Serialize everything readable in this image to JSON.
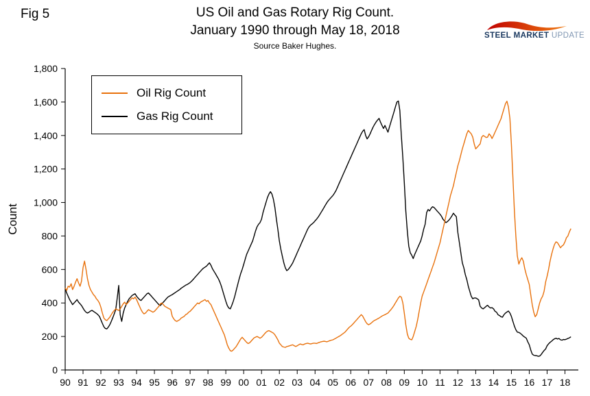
{
  "fig_label": "Fig 5",
  "title": {
    "line1": "US Oil and Gas Rotary Rig Count.",
    "line2": "January 1990 through May 18, 2018",
    "source": "Source Baker Hughes."
  },
  "logo": {
    "steel": "STEEL",
    "market": "MARKET",
    "update": "UPDATE",
    "swoosh_color_start": "#C00000",
    "swoosh_color_end": "#F07B10"
  },
  "chart_data": {
    "type": "line",
    "title": "US Oil and Gas Rotary Rig Count.",
    "subtitle": "January 1990 through May 18, 2018",
    "source": "Source Baker Hughes.",
    "xlabel": "",
    "ylabel": "Count",
    "ylim": [
      0,
      1800
    ],
    "ytick_step": 200,
    "grid": false,
    "x_frequency": "monthly",
    "x_start": "1990-01",
    "x_end": "2018-05",
    "x_tick_labels": [
      "90",
      "91",
      "92",
      "93",
      "94",
      "95",
      "96",
      "97",
      "98",
      "99",
      "00",
      "01",
      "02",
      "03",
      "04",
      "05",
      "06",
      "07",
      "08",
      "09",
      "10",
      "11",
      "12",
      "13",
      "14",
      "15",
      "16",
      "17",
      "18"
    ],
    "legend": {
      "position": "top-left",
      "entries": [
        "Oil Rig Count",
        "Gas Rig Count"
      ]
    },
    "series": [
      {
        "name": "Oil Rig Count",
        "color": "#E8700A",
        "values": [
          490,
          475,
          500,
          495,
          515,
          480,
          500,
          525,
          545,
          520,
          500,
          530,
          610,
          650,
          600,
          545,
          505,
          480,
          465,
          450,
          440,
          425,
          415,
          400,
          375,
          340,
          310,
          300,
          295,
          305,
          315,
          330,
          345,
          355,
          365,
          360,
          355,
          365,
          380,
          395,
          405,
          390,
          400,
          410,
          420,
          430,
          425,
          435,
          420,
          400,
          380,
          360,
          345,
          335,
          340,
          350,
          360,
          355,
          350,
          345,
          350,
          360,
          370,
          380,
          395,
          400,
          390,
          380,
          375,
          370,
          365,
          360,
          320,
          305,
          295,
          290,
          295,
          300,
          310,
          315,
          320,
          330,
          335,
          345,
          350,
          360,
          370,
          380,
          390,
          400,
          395,
          405,
          410,
          415,
          420,
          410,
          415,
          400,
          390,
          370,
          350,
          330,
          310,
          290,
          270,
          250,
          230,
          210,
          180,
          150,
          130,
          115,
          112,
          120,
          130,
          140,
          155,
          170,
          185,
          195,
          185,
          175,
          165,
          158,
          162,
          172,
          182,
          192,
          196,
          200,
          195,
          190,
          195,
          205,
          215,
          225,
          232,
          235,
          230,
          225,
          220,
          210,
          195,
          180,
          160,
          150,
          140,
          137,
          135,
          140,
          142,
          145,
          148,
          150,
          145,
          140,
          145,
          150,
          155,
          152,
          150,
          155,
          158,
          160,
          157,
          155,
          158,
          160,
          160,
          158,
          162,
          165,
          168,
          170,
          172,
          170,
          168,
          172,
          175,
          178,
          180,
          185,
          190,
          195,
          200,
          205,
          212,
          218,
          225,
          235,
          245,
          255,
          262,
          270,
          280,
          290,
          300,
          310,
          320,
          330,
          322,
          305,
          288,
          276,
          270,
          275,
          282,
          290,
          296,
          300,
          305,
          310,
          316,
          322,
          326,
          330,
          335,
          340,
          350,
          360,
          372,
          385,
          400,
          415,
          430,
          440,
          435,
          400,
          340,
          270,
          215,
          190,
          183,
          180,
          200,
          230,
          260,
          300,
          350,
          400,
          440,
          465,
          490,
          515,
          540,
          565,
          590,
          615,
          640,
          670,
          700,
          730,
          760,
          800,
          840,
          880,
          920,
          960,
          1000,
          1040,
          1070,
          1100,
          1140,
          1180,
          1220,
          1250,
          1285,
          1320,
          1350,
          1380,
          1410,
          1430,
          1420,
          1410,
          1390,
          1350,
          1320,
          1330,
          1340,
          1350,
          1390,
          1400,
          1395,
          1388,
          1390,
          1410,
          1400,
          1382,
          1400,
          1420,
          1440,
          1460,
          1480,
          1500,
          1530,
          1560,
          1590,
          1605,
          1570,
          1500,
          1350,
          1150,
          950,
          800,
          680,
          632,
          655,
          670,
          650,
          605,
          570,
          540,
          510,
          450,
          390,
          345,
          318,
          330,
          365,
          400,
          425,
          441,
          470,
          525,
          560,
          600,
          650,
          690,
          722,
          750,
          765,
          760,
          745,
          730,
          740,
          747,
          765,
          790,
          800,
          825,
          844
        ]
      },
      {
        "name": "Gas Rig Count",
        "color": "#000000",
        "values": [
          485,
          460,
          440,
          420,
          405,
          390,
          400,
          410,
          420,
          405,
          395,
          385,
          370,
          355,
          345,
          340,
          345,
          352,
          356,
          350,
          344,
          338,
          330,
          320,
          300,
          278,
          258,
          248,
          245,
          256,
          270,
          290,
          312,
          335,
          360,
          430,
          505,
          330,
          290,
          340,
          370,
          390,
          410,
          425,
          435,
          445,
          450,
          455,
          440,
          430,
          420,
          415,
          425,
          435,
          445,
          455,
          460,
          450,
          440,
          430,
          420,
          410,
          400,
          390,
          385,
          395,
          405,
          415,
          425,
          435,
          440,
          445,
          450,
          456,
          462,
          468,
          474,
          480,
          488,
          494,
          500,
          506,
          510,
          516,
          522,
          530,
          540,
          550,
          560,
          570,
          580,
          590,
          600,
          608,
          614,
          620,
          630,
          640,
          625,
          605,
          590,
          575,
          560,
          545,
          525,
          500,
          470,
          440,
          410,
          385,
          370,
          365,
          385,
          410,
          440,
          475,
          510,
          545,
          575,
          600,
          630,
          660,
          690,
          710,
          730,
          750,
          770,
          800,
          830,
          855,
          870,
          880,
          900,
          940,
          970,
          1000,
          1030,
          1050,
          1065,
          1050,
          1020,
          970,
          900,
          840,
          770,
          720,
          680,
          640,
          610,
          593,
          600,
          612,
          625,
          640,
          660,
          680,
          700,
          720,
          740,
          760,
          780,
          800,
          820,
          840,
          855,
          865,
          872,
          880,
          890,
          900,
          912,
          925,
          940,
          955,
          970,
          985,
          1000,
          1012,
          1022,
          1032,
          1042,
          1055,
          1070,
          1090,
          1110,
          1130,
          1150,
          1170,
          1190,
          1210,
          1230,
          1250,
          1270,
          1290,
          1310,
          1330,
          1350,
          1370,
          1390,
          1410,
          1425,
          1435,
          1400,
          1380,
          1392,
          1410,
          1430,
          1450,
          1466,
          1480,
          1492,
          1502,
          1480,
          1460,
          1442,
          1460,
          1440,
          1420,
          1450,
          1480,
          1510,
          1540,
          1570,
          1600,
          1606,
          1550,
          1400,
          1267,
          1120,
          950,
          830,
          740,
          700,
          685,
          665,
          690,
          710,
          730,
          750,
          770,
          800,
          840,
          870,
          940,
          958,
          950,
          965,
          975,
          970,
          960,
          950,
          940,
          930,
          918,
          900,
          890,
          880,
          886,
          895,
          906,
          920,
          936,
          925,
          915,
          820,
          760,
          700,
          640,
          610,
          570,
          540,
          500,
          470,
          440,
          425,
          430,
          430,
          425,
          418,
          380,
          370,
          365,
          372,
          380,
          386,
          376,
          370,
          372,
          365,
          350,
          345,
          330,
          325,
          318,
          315,
          330,
          340,
          346,
          352,
          340,
          320,
          290,
          262,
          240,
          226,
          224,
          219,
          211,
          202,
          196,
          190,
          168,
          150,
          120,
          95,
          88,
          86,
          85,
          82,
          83,
          92,
          105,
          116,
          125,
          145,
          156,
          165,
          172,
          180,
          186,
          190,
          185,
          188,
          180,
          178,
          182,
          181,
          184,
          188,
          192,
          198
        ]
      }
    ]
  }
}
